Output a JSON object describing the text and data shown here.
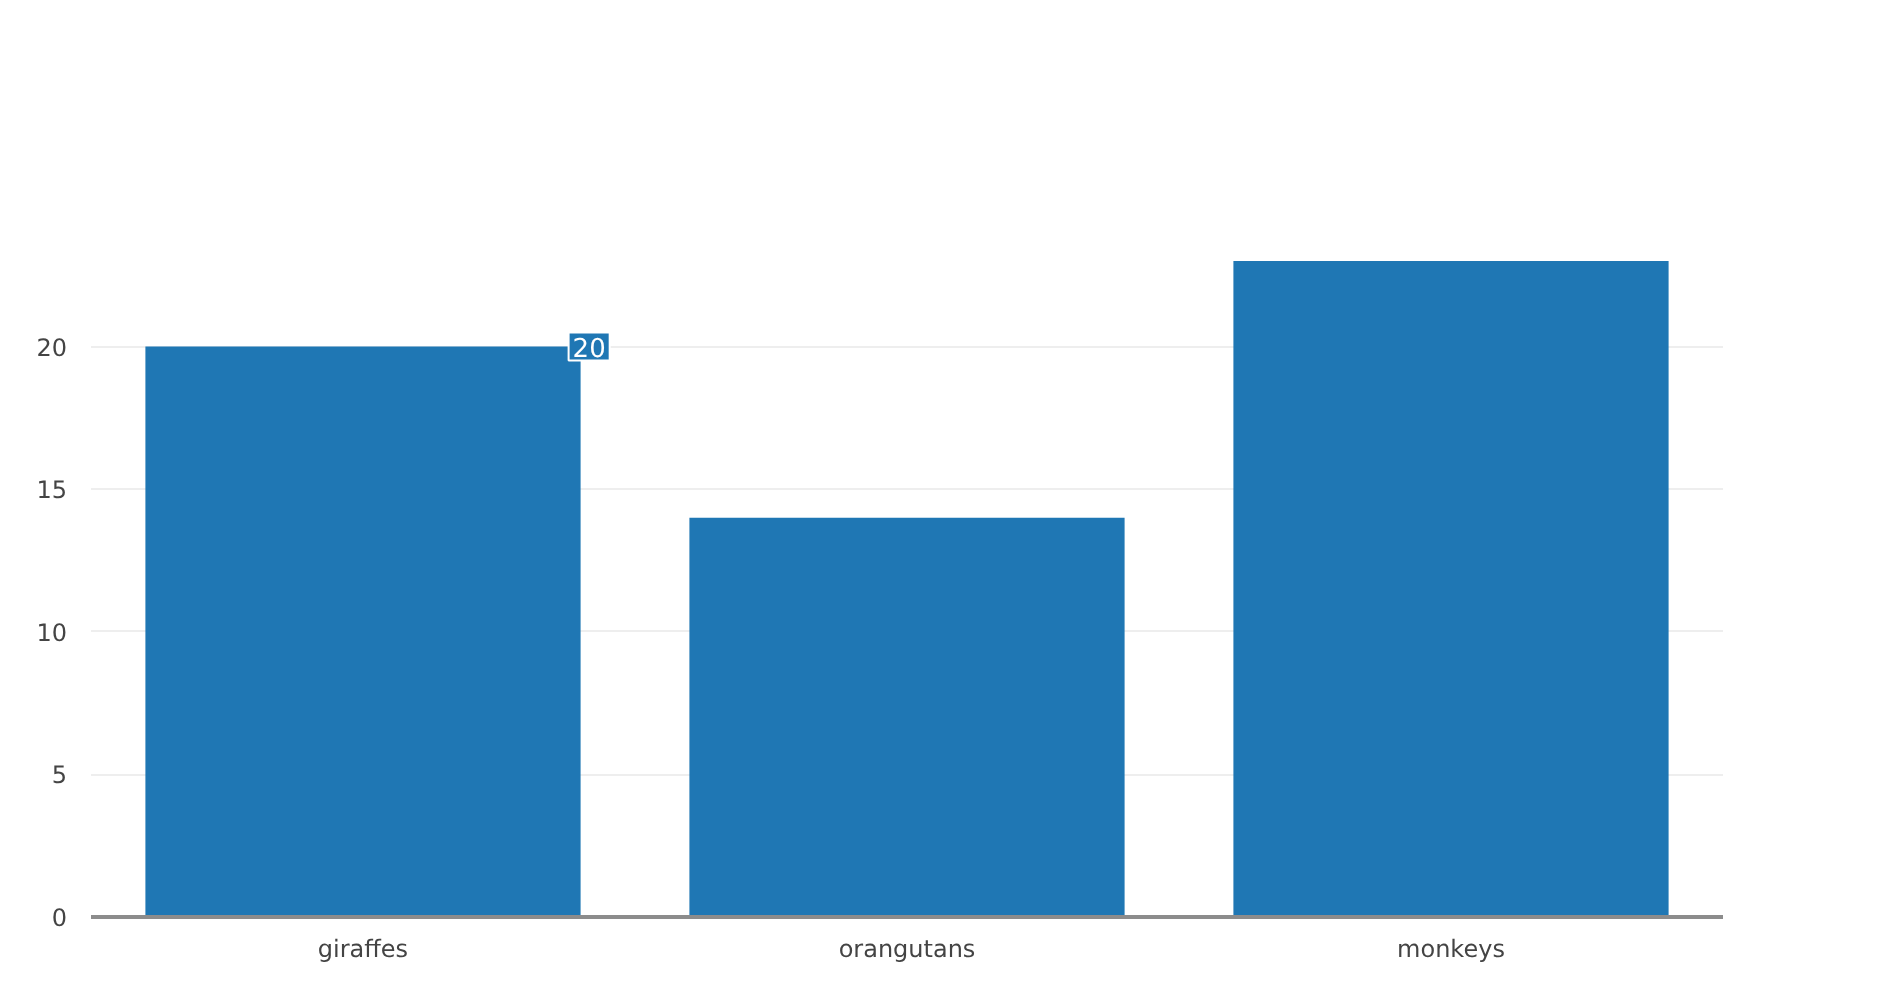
{
  "chart_data": {
    "type": "bar",
    "categories": [
      "giraffes",
      "orangutans",
      "monkeys"
    ],
    "values": [
      20,
      14,
      23
    ],
    "color": "#1f77b4",
    "value_labels": [
      "20",
      null,
      null
    ],
    "ylim": [
      0,
      23
    ],
    "yticks": [
      0,
      5,
      10,
      15,
      20
    ],
    "grid": "y"
  }
}
